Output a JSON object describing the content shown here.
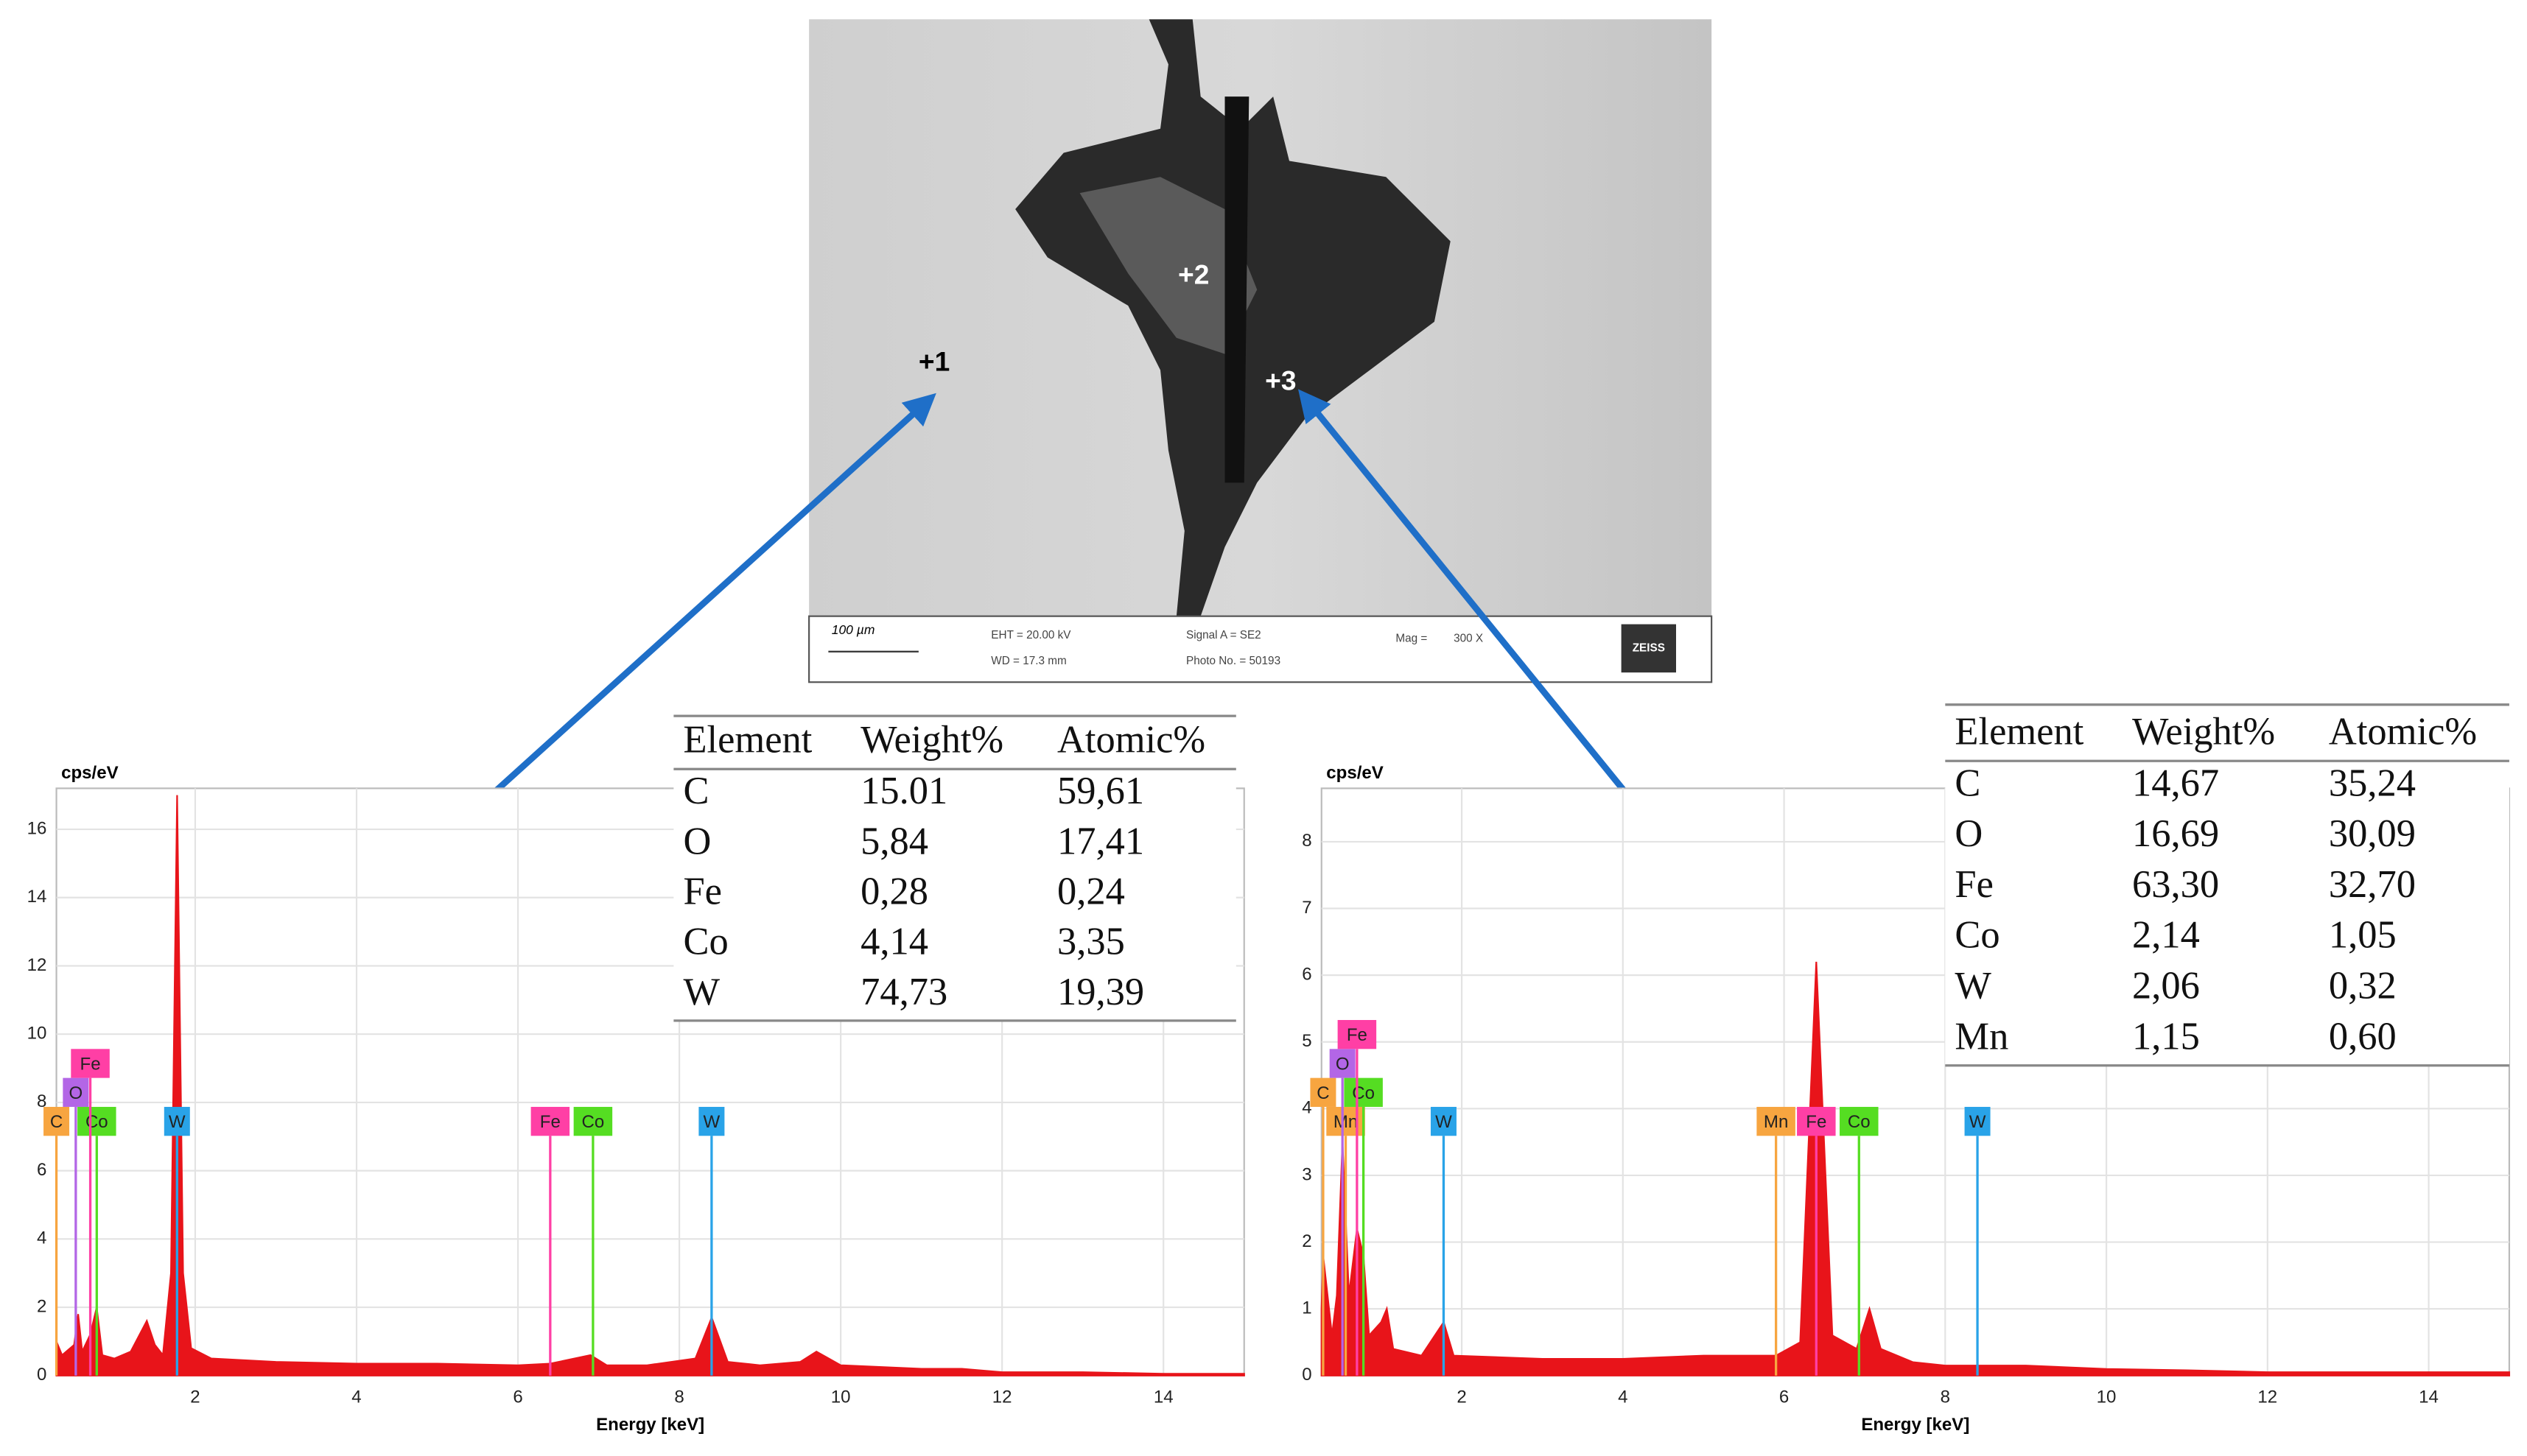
{
  "chart_data": [
    {
      "type": "area",
      "y_label": "cps/eV",
      "x_label": "Energy [keV]",
      "color": "#e8141a",
      "grid": true,
      "xlim": [
        0.28,
        15
      ],
      "ylim": [
        0,
        17.2
      ],
      "xticks": [
        2,
        4,
        6,
        8,
        10,
        12,
        14
      ],
      "yticks": [
        0,
        2,
        4,
        6,
        8,
        10,
        12,
        14,
        16
      ],
      "x": [
        0.28,
        0.35,
        0.5,
        0.55,
        0.6,
        0.7,
        0.78,
        0.85,
        1.0,
        1.2,
        1.4,
        1.5,
        1.6,
        1.7,
        1.775,
        1.85,
        1.95,
        2.2,
        3,
        4,
        5,
        6,
        6.4,
        6.9,
        7.1,
        7.6,
        8.2,
        8.4,
        8.6,
        9.0,
        9.5,
        9.7,
        9.85,
        10.0,
        11,
        11.5,
        12,
        13,
        14,
        15
      ],
      "values": [
        1.0,
        0.6,
        0.9,
        1.8,
        0.7,
        1.2,
        2.0,
        0.6,
        0.5,
        0.7,
        1.6,
        0.9,
        0.6,
        3,
        17,
        3,
        0.8,
        0.5,
        0.4,
        0.35,
        0.35,
        0.3,
        0.35,
        0.6,
        0.3,
        0.3,
        0.5,
        1.7,
        0.4,
        0.3,
        0.4,
        0.7,
        0.5,
        0.3,
        0.2,
        0.2,
        0.1,
        0.1,
        0.05,
        0.05
      ],
      "markers": [
        {
          "label": "C",
          "x": 0.28,
          "color": "#f7a540"
        },
        {
          "label": "O",
          "x": 0.52,
          "color": "#b366e6"
        },
        {
          "label": "Co",
          "x": 0.78,
          "color": "#55dd22"
        },
        {
          "label": "Fe",
          "x": 0.7,
          "color": "#ff3fa5"
        },
        {
          "label": "W",
          "x": 1.775,
          "color": "#29a3e8"
        },
        {
          "label": "Fe",
          "x": 6.4,
          "color": "#ff3fa5"
        },
        {
          "label": "Co",
          "x": 6.93,
          "color": "#55dd22"
        },
        {
          "label": "W",
          "x": 8.4,
          "color": "#29a3e8"
        }
      ]
    },
    {
      "type": "area",
      "y_label": "cps/eV",
      "x_label": "Energy [keV]",
      "color": "#e8141a",
      "grid": true,
      "xlim": [
        0.26,
        15
      ],
      "ylim": [
        0,
        8.8
      ],
      "xticks": [
        2,
        4,
        6,
        8,
        10,
        12,
        14
      ],
      "yticks": [
        0,
        1,
        2,
        3,
        4,
        5,
        6,
        7,
        8
      ],
      "x": [
        0.26,
        0.28,
        0.39,
        0.45,
        0.52,
        0.6,
        0.7,
        0.78,
        0.85,
        1.0,
        1.07,
        1.15,
        1.5,
        1.775,
        1.9,
        3,
        4,
        5,
        5.9,
        6.2,
        6.4,
        6.6,
        6.9,
        7.06,
        7.2,
        7.6,
        8,
        9,
        10,
        11,
        12,
        13,
        15
      ],
      "values": [
        1.0,
        1.8,
        0.6,
        1.2,
        3.5,
        1.2,
        2.2,
        1.8,
        0.6,
        0.8,
        1.0,
        0.4,
        0.3,
        0.8,
        0.3,
        0.25,
        0.25,
        0.3,
        0.3,
        0.5,
        6.2,
        0.6,
        0.4,
        1.0,
        0.4,
        0.2,
        0.15,
        0.15,
        0.1,
        0.08,
        0.05,
        0.05,
        0.05
      ],
      "markers": [
        {
          "label": "Mn",
          "x": 0.56,
          "color": "#f7a540"
        },
        {
          "label": "C",
          "x": 0.28,
          "color": "#f7a540"
        },
        {
          "label": "O",
          "x": 0.52,
          "color": "#b366e6"
        },
        {
          "label": "Co",
          "x": 0.78,
          "color": "#55dd22"
        },
        {
          "label": "Fe",
          "x": 0.7,
          "color": "#ff3fa5"
        },
        {
          "label": "W",
          "x": 1.775,
          "color": "#29a3e8"
        },
        {
          "label": "Mn",
          "x": 5.9,
          "color": "#f7a540"
        },
        {
          "label": "Fe",
          "x": 6.4,
          "color": "#ff3fa5"
        },
        {
          "label": "Co",
          "x": 6.93,
          "color": "#55dd22"
        },
        {
          "label": "W",
          "x": 8.4,
          "color": "#29a3e8"
        }
      ]
    }
  ],
  "tables": [
    {
      "header": [
        "Element",
        "Weight%",
        "Atomic%"
      ],
      "rows": [
        [
          "C",
          "15.01",
          "59,61"
        ],
        [
          "O",
          "5,84",
          "17,41"
        ],
        [
          "Fe",
          "0,28",
          "0,24"
        ],
        [
          "Co",
          "4,14",
          "3,35"
        ],
        [
          "W",
          "74,73",
          "19,39"
        ]
      ]
    },
    {
      "header": [
        "Element",
        "Weight%",
        "Atomic%"
      ],
      "rows": [
        [
          "C",
          "14,67",
          "35,24"
        ],
        [
          "O",
          "16,69",
          "30,09"
        ],
        [
          "Fe",
          "63,30",
          "32,70"
        ],
        [
          "Co",
          "2,14",
          "1,05"
        ],
        [
          "W",
          "2,06",
          "0,32"
        ],
        [
          "Mn",
          "1,15",
          "0,60"
        ]
      ]
    }
  ],
  "sem_image": {
    "points": [
      "+1",
      "+2",
      "+3"
    ],
    "scale_bar": "100 µm",
    "info": [
      "EHT = 20.00 kV",
      "WD = 17.3 mm",
      "Signal A = SE2",
      "Photo No. = 50193",
      "Mag =",
      "300 X"
    ],
    "logo": "ZEISS"
  }
}
